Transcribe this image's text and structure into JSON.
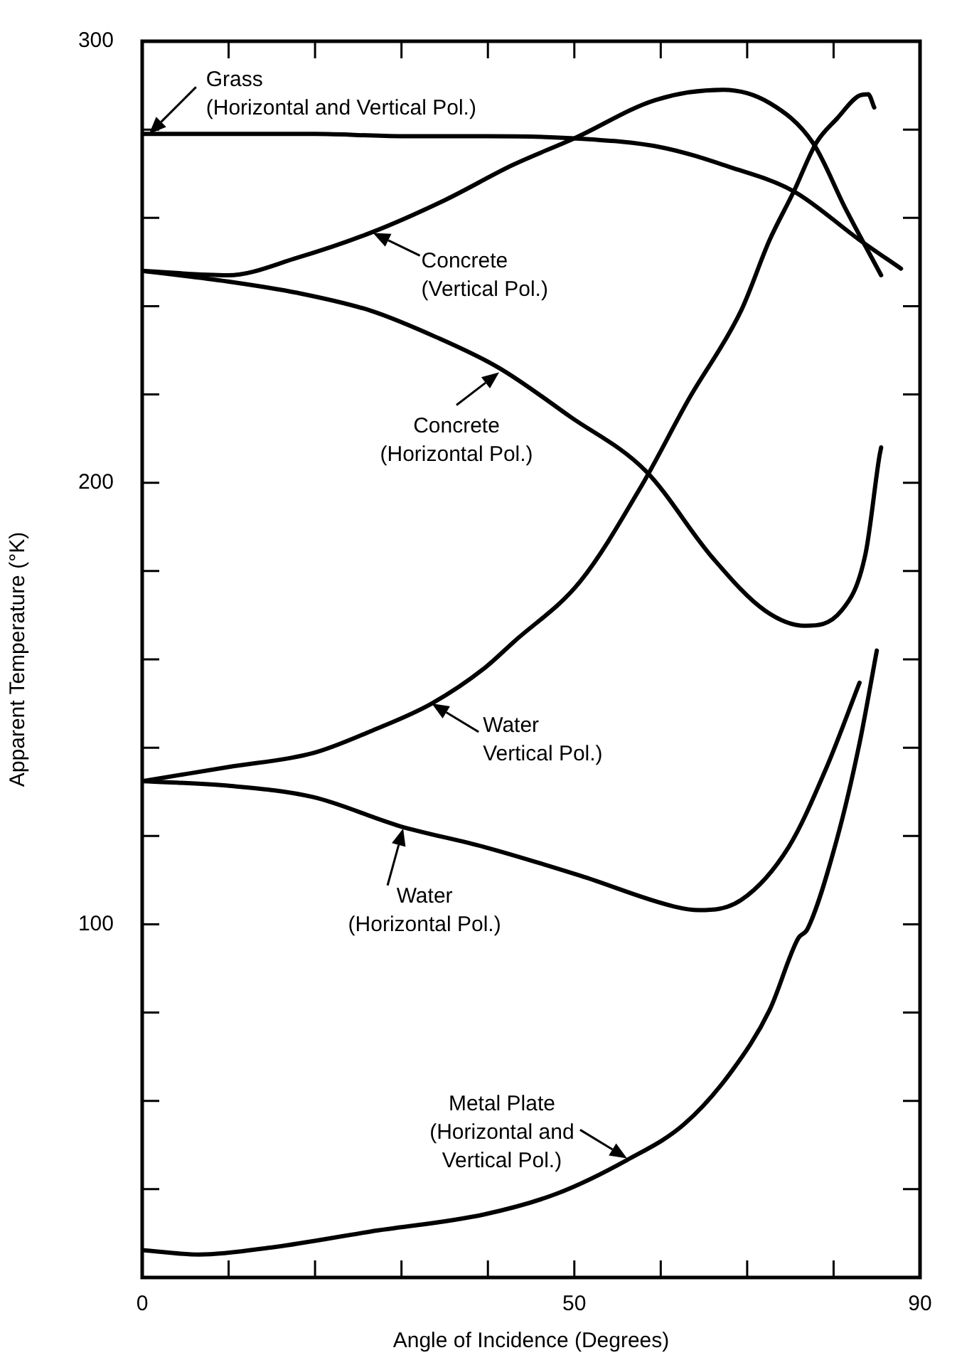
{
  "chart_data": {
    "type": "line",
    "xlabel": "Angle of Incidence (Degrees)",
    "ylabel": "Apparent Temperature (°K)",
    "xlim": [
      0,
      90
    ],
    "ylim": [
      20,
      300
    ],
    "xticks": [
      0,
      {
        "value": 10,
        "label": null
      },
      {
        "value": 20,
        "label": null
      },
      {
        "value": 30,
        "label": null
      },
      {
        "value": 40,
        "label": null
      },
      50,
      {
        "value": 60,
        "label": null
      },
      {
        "value": 70,
        "label": null
      },
      {
        "value": 80,
        "label": null
      },
      90
    ],
    "yticks": [
      {
        "value": 20,
        "label": null
      },
      {
        "value": 40,
        "label": null
      },
      {
        "value": 60,
        "label": null
      },
      {
        "value": 80,
        "label": null
      },
      100,
      {
        "value": 120,
        "label": null
      },
      {
        "value": 140,
        "label": null
      },
      {
        "value": 160,
        "label": null
      },
      {
        "value": 180,
        "label": null
      },
      200,
      {
        "value": 220,
        "label": null
      },
      {
        "value": 240,
        "label": null
      },
      {
        "value": 260,
        "label": null
      },
      {
        "value": 280,
        "label": null
      },
      300
    ],
    "grid": false,
    "legend": false,
    "marker": "none",
    "line_style": "solid",
    "series": [
      {
        "color": "#000000",
        "x": [
          0,
          10,
          20,
          30,
          40,
          50,
          60,
          68,
          75.4,
          83,
          87.8
        ],
        "values": [
          279,
          279,
          279,
          278.5,
          278.5,
          278,
          276,
          271.5,
          266,
          255,
          248.5
        ]
      },
      {
        "color": "#000000",
        "x": [
          0,
          9.9,
          18,
          26.4,
          35,
          42.9,
          50,
          59.4,
          67.2,
          72.6,
          77.6,
          81.4,
          85.5
        ],
        "values": [
          248,
          247,
          251,
          256.6,
          264,
          272,
          278,
          286.7,
          289,
          286,
          277,
          262,
          247
        ]
      },
      {
        "color": "#000000",
        "x": [
          0,
          9.9,
          18,
          26.4,
          34,
          41.3,
          49.5,
          58.3,
          66,
          72.1,
          76.7,
          80.9,
          83.7,
          85.3,
          85.5
        ],
        "values": [
          248,
          245.6,
          243,
          239,
          233,
          226,
          215,
          202.6,
          183,
          171,
          167.6,
          171,
          184,
          206,
          208
        ]
      },
      {
        "color": "#000000",
        "x": [
          0,
          9.9,
          19.8,
          26.4,
          33.5,
          39.6,
          42.9,
          50.7,
          57.8,
          63.2,
          69.3,
          72.6,
          75.4,
          78,
          80.4,
          83,
          84,
          84.7
        ],
        "values": [
          132.4,
          135.6,
          138.8,
          143.7,
          150,
          158,
          163.8,
          177.7,
          199.4,
          218.8,
          239,
          255,
          266,
          277,
          282.5,
          287.7,
          288,
          285
        ]
      },
      {
        "color": "#000000",
        "x": [
          0,
          9.9,
          19.8,
          29.7,
          39.6,
          50.7,
          61.6,
          64.4,
          69.3,
          74.8,
          79.2,
          83
        ],
        "values": [
          132.4,
          131.4,
          128.8,
          122.3,
          117.5,
          111,
          104,
          103.2,
          105.5,
          117.5,
          135.6,
          154.7
        ]
      },
      {
        "color": "#000000",
        "x": [
          0,
          6.6,
          15.3,
          26.4,
          39.6,
          48,
          56.1,
          62.7,
          68.2,
          72.6,
          75.9,
          77,
          80.4,
          83,
          85
        ],
        "values": [
          26.2,
          25.2,
          26.9,
          30.4,
          34.3,
          39,
          46.6,
          54.7,
          66.7,
          80.6,
          96.8,
          99,
          119.4,
          141,
          162
        ]
      }
    ],
    "annotations": [
      {
        "text": "Grass\n(Horizontal and Vertical Pol.)",
        "x": 0.8,
        "y": 279
      },
      {
        "text": "Concrete\n(Vertical Pol.)",
        "x": 26.7,
        "y": 256.6
      },
      {
        "text": "Concrete\n(Horizontal Pol.)",
        "x": 41.3,
        "y": 225
      },
      {
        "text": "Water\nVertical Pol.)",
        "x": 33.5,
        "y": 150
      },
      {
        "text": "Water\n(Horizontal Pol.)",
        "x": 30.2,
        "y": 121.7
      },
      {
        "text": "Metal Plate\n(Horizontal and\nVertical Pol.)",
        "x": 56.1,
        "y": 47
      }
    ]
  }
}
